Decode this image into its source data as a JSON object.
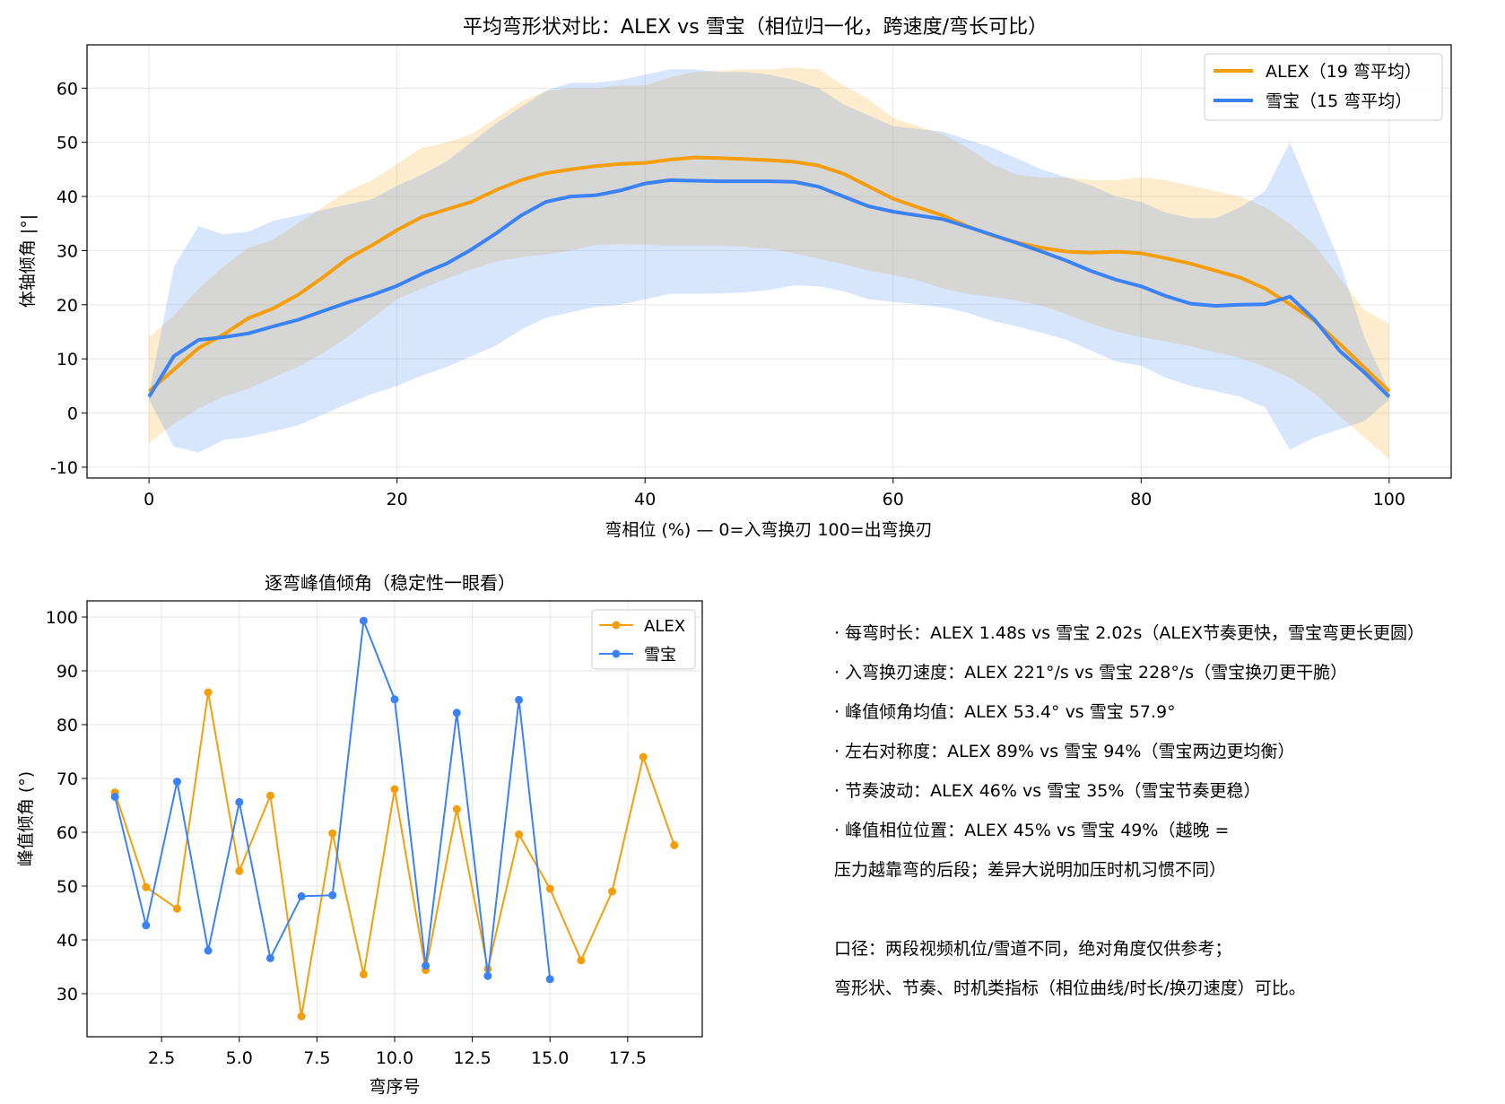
{
  "chart_data": [
    {
      "type": "line",
      "title": "平均弯形状对比：ALEX vs 雪宝（相位归一化，跨速度/弯长可比）",
      "xlabel": "弯相位 (%)  —  0=入弯换刃  100=出弯换刃",
      "ylabel": "体轴倾角 |°|",
      "xlim": [
        -5,
        105
      ],
      "ylim": [
        -12,
        68
      ],
      "xticks": [
        0,
        20,
        40,
        60,
        80,
        100
      ],
      "yticks": [
        -10,
        0,
        10,
        20,
        30,
        40,
        50,
        60
      ],
      "grid": true,
      "legend_position": "upper right",
      "band": "shaded range around each mean curve",
      "x": [
        0,
        2,
        4,
        6,
        8,
        10,
        12,
        14,
        16,
        18,
        20,
        22,
        24,
        26,
        28,
        30,
        32,
        34,
        36,
        38,
        40,
        42,
        44,
        46,
        48,
        50,
        52,
        54,
        56,
        58,
        60,
        62,
        64,
        66,
        68,
        70,
        72,
        74,
        76,
        78,
        80,
        82,
        84,
        86,
        88,
        90,
        92,
        94,
        96,
        98,
        100
      ],
      "series": [
        {
          "name": "ALEX（19 弯平均）",
          "color": "#f59e0b",
          "values": [
            4,
            8,
            12,
            14.5,
            17.5,
            19.3,
            21.8,
            25,
            28.5,
            31,
            33.8,
            36.2,
            37.6,
            39,
            41.2,
            43,
            44.3,
            45,
            45.6,
            46,
            46.2,
            46.8,
            47.2,
            47.1,
            46.9,
            46.7,
            46.4,
            45.7,
            44.2,
            41.9,
            39.6,
            38,
            36.5,
            34.5,
            32.8,
            31.5,
            30.5,
            29.8,
            29.6,
            29.8,
            29.5,
            28.6,
            27.6,
            26.3,
            25,
            23,
            20.1,
            17,
            12.8,
            8.4,
            4
          ],
          "band_lower": [
            -5.5,
            -2,
            0.8,
            3,
            4.5,
            6.5,
            8.5,
            11,
            14,
            17.5,
            21,
            23,
            24.8,
            26.5,
            28,
            28.8,
            29.3,
            30,
            31,
            31.2,
            31.1,
            30.9,
            30.9,
            30.9,
            30.7,
            30.3,
            29.5,
            28.5,
            27.5,
            26.3,
            25.5,
            24.5,
            23,
            22,
            21.4,
            20.8,
            19.8,
            18.2,
            16.5,
            15,
            14,
            13.2,
            12.3,
            11.2,
            10.2,
            8.5,
            6.5,
            3.5,
            -0.5,
            -4.5,
            -8.5
          ],
          "band_upper": [
            14,
            18,
            23,
            27,
            30.5,
            32,
            35,
            38,
            41,
            43,
            46,
            49,
            50,
            51.5,
            54.5,
            57.5,
            59.5,
            60,
            60,
            60.5,
            60.5,
            62,
            63,
            63.2,
            63.5,
            63.5,
            63.8,
            63.5,
            60.5,
            58,
            54.5,
            53,
            51.5,
            49,
            46,
            44,
            43.5,
            43.5,
            43,
            43,
            43.5,
            43,
            42,
            41,
            40,
            38,
            35,
            31,
            25,
            19,
            16.5
          ]
        },
        {
          "name": "雪宝（15 弯平均）",
          "color": "#3b82f6",
          "values": [
            3,
            10.5,
            13.5,
            14,
            14.7,
            16,
            17.2,
            18.8,
            20.4,
            21.8,
            23.5,
            25.7,
            27.6,
            30.2,
            33.2,
            36.5,
            39,
            40,
            40.2,
            41.1,
            42.4,
            43,
            42.9,
            42.8,
            42.8,
            42.8,
            42.7,
            41.8,
            40,
            38.2,
            37.2,
            36.5,
            35.8,
            34.4,
            32.9,
            31.4,
            29.8,
            28.1,
            26.2,
            24.6,
            23.4,
            21.6,
            20.2,
            19.8,
            20,
            20.1,
            21.5,
            17.2,
            11.5,
            7.5,
            3
          ],
          "band_lower": [
            2.5,
            -6.2,
            -7.3,
            -5,
            -4.4,
            -3.4,
            -2.3,
            -0.3,
            1.7,
            3.5,
            5,
            6.9,
            8.5,
            10.5,
            12.5,
            15.4,
            17.6,
            18.6,
            19.6,
            20,
            21,
            22,
            22,
            22.1,
            22.3,
            22.7,
            23.6,
            23.4,
            22.5,
            21,
            20.5,
            20.1,
            19.5,
            18.5,
            17,
            16,
            14.8,
            13.5,
            11.5,
            9.5,
            8.7,
            6.5,
            5,
            4,
            3,
            1,
            -6.8,
            -4.5,
            -3,
            -1.5,
            2.5
          ],
          "band_upper": [
            3.5,
            27,
            34.5,
            33,
            33.5,
            35.5,
            36.5,
            37.5,
            38.5,
            39.5,
            42,
            44,
            46.5,
            50,
            53.5,
            56.5,
            59.5,
            61,
            61,
            61.5,
            62.5,
            63.5,
            63.5,
            63,
            63,
            62.5,
            61.5,
            60,
            57,
            55,
            53,
            52.5,
            52,
            50.5,
            49,
            47,
            45,
            43.5,
            42,
            40,
            39,
            37,
            36,
            36,
            38,
            41,
            50,
            39,
            28,
            14,
            4
          ]
        }
      ]
    },
    {
      "type": "line",
      "title": "逐弯峰值倾角（稳定性一眼看）",
      "xlabel": "弯序号",
      "ylabel": "峰值倾角 (°)",
      "xlim": [
        0.1,
        19.9
      ],
      "ylim": [
        22,
        103
      ],
      "xticks": [
        2.5,
        5.0,
        7.5,
        10.0,
        12.5,
        15.0,
        17.5
      ],
      "yticks": [
        30,
        40,
        50,
        60,
        70,
        80,
        90,
        100
      ],
      "grid": true,
      "legend_position": "upper right",
      "markers": true,
      "series": [
        {
          "name": "ALEX",
          "color": "#f59e0b",
          "x": [
            1,
            2,
            3,
            4,
            5,
            6,
            7,
            8,
            9,
            10,
            11,
            12,
            13,
            14,
            15,
            16,
            17,
            18,
            19
          ],
          "values": [
            67.4,
            49.8,
            45.8,
            86,
            52.8,
            66.8,
            25.8,
            59.8,
            33.6,
            68,
            34.4,
            64.3,
            34.6,
            59.6,
            49.5,
            36.2,
            49,
            74,
            57.6
          ]
        },
        {
          "name": "雪宝",
          "color": "#3b82f6",
          "x": [
            1,
            2,
            3,
            4,
            5,
            6,
            7,
            8,
            9,
            10,
            11,
            12,
            13,
            14,
            15
          ],
          "values": [
            66.6,
            42.7,
            69.4,
            38,
            65.6,
            36.6,
            48.1,
            48.3,
            99.3,
            84.7,
            35.2,
            82.2,
            33.3,
            84.6,
            32.7
          ]
        }
      ]
    }
  ],
  "notes": [
    "· 每弯时长：ALEX 1.48s vs 雪宝 2.02s（ALEX节奏更快，雪宝弯更长更圆）",
    "· 入弯换刃速度：ALEX 221°/s vs 雪宝 228°/s（雪宝换刃更干脆）",
    "· 峰值倾角均值：ALEX 53.4° vs 雪宝 57.9°",
    "· 左右对称度：ALEX 89% vs 雪宝 94%（雪宝两边更均衡）",
    "· 节奏波动：ALEX 46% vs 雪宝 35%（雪宝节奏更稳）",
    "· 峰值相位位置：ALEX 45% vs 雪宝 49%（越晚 =",
    "压力越靠弯的后段；差异大说明加压时机习惯不同）"
  ],
  "caveat": [
    "口径：两段视频机位/雪道不同，绝对角度仅供参考；",
    "弯形状、节奏、时机类指标（相位曲线/时长/换刃速度）可比。"
  ]
}
